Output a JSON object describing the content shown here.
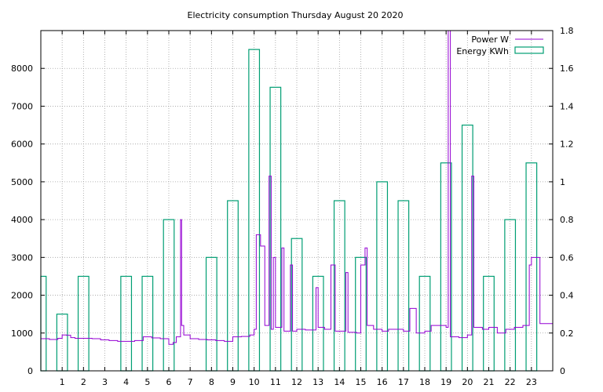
{
  "chart_data": {
    "type": "bar+line",
    "title": "Electricity consumption Thursday August 20 2020",
    "x_ticks": [
      "1",
      "2",
      "3",
      "4",
      "5",
      "6",
      "7",
      "8",
      "9",
      "10",
      "11",
      "12",
      "13",
      "14",
      "15",
      "16",
      "17",
      "18",
      "19",
      "20",
      "21",
      "22",
      "23"
    ],
    "xlim": [
      0,
      24
    ],
    "y_left": {
      "ticks": [
        "0",
        "1000",
        "2000",
        "3000",
        "4000",
        "5000",
        "6000",
        "7000",
        "8000"
      ],
      "range": [
        0,
        9000
      ]
    },
    "y_right": {
      "ticks": [
        "0",
        "0.2",
        "0.4",
        "0.6",
        "0.8",
        "1",
        "1.2",
        "1.4",
        "1.6",
        "1.8"
      ],
      "range": [
        0,
        1.8
      ]
    },
    "grid": true,
    "legend_position": "top-right",
    "colors": {
      "power": "#9400d3",
      "energy": "#009e73"
    },
    "series": [
      {
        "name": "Power W",
        "axis": "left",
        "points": [
          [
            0,
            850
          ],
          [
            0.4,
            830
          ],
          [
            0.8,
            860
          ],
          [
            1.0,
            950
          ],
          [
            1.2,
            940
          ],
          [
            1.4,
            880
          ],
          [
            1.6,
            860
          ],
          [
            1.8,
            860
          ],
          [
            2.0,
            860
          ],
          [
            2.4,
            850
          ],
          [
            2.8,
            820
          ],
          [
            3.2,
            800
          ],
          [
            3.6,
            780
          ],
          [
            4.0,
            780
          ],
          [
            4.4,
            800
          ],
          [
            4.8,
            900
          ],
          [
            5.2,
            870
          ],
          [
            5.6,
            850
          ],
          [
            6.0,
            700
          ],
          [
            6.2,
            750
          ],
          [
            6.35,
            900
          ],
          [
            6.55,
            4000
          ],
          [
            6.6,
            1200
          ],
          [
            6.7,
            950
          ],
          [
            7.0,
            850
          ],
          [
            7.4,
            830
          ],
          [
            7.8,
            820
          ],
          [
            8.2,
            800
          ],
          [
            8.6,
            780
          ],
          [
            9.0,
            900
          ],
          [
            9.4,
            910
          ],
          [
            9.8,
            950
          ],
          [
            10.0,
            1100
          ],
          [
            10.1,
            3600
          ],
          [
            10.3,
            3300
          ],
          [
            10.5,
            1200
          ],
          [
            10.7,
            5150
          ],
          [
            10.8,
            1100
          ],
          [
            10.9,
            3000
          ],
          [
            11.0,
            1150
          ],
          [
            11.3,
            3250
          ],
          [
            11.4,
            1050
          ],
          [
            11.7,
            2800
          ],
          [
            11.8,
            1050
          ],
          [
            12.0,
            1100
          ],
          [
            12.4,
            1080
          ],
          [
            12.9,
            2200
          ],
          [
            13.0,
            1150
          ],
          [
            13.3,
            1100
          ],
          [
            13.6,
            2800
          ],
          [
            13.8,
            1050
          ],
          [
            14.0,
            1050
          ],
          [
            14.3,
            2600
          ],
          [
            14.4,
            1020
          ],
          [
            14.8,
            1000
          ],
          [
            15.0,
            2800
          ],
          [
            15.2,
            3250
          ],
          [
            15.3,
            1200
          ],
          [
            15.6,
            1100
          ],
          [
            16.0,
            1050
          ],
          [
            16.3,
            1100
          ],
          [
            16.6,
            1100
          ],
          [
            17.0,
            1050
          ],
          [
            17.3,
            1650
          ],
          [
            17.6,
            1000
          ],
          [
            18.0,
            1050
          ],
          [
            18.3,
            1200
          ],
          [
            18.6,
            1200
          ],
          [
            19.0,
            1150
          ],
          [
            19.1,
            9500
          ],
          [
            19.2,
            900
          ],
          [
            19.6,
            880
          ],
          [
            20.0,
            950
          ],
          [
            20.2,
            5150
          ],
          [
            20.3,
            1150
          ],
          [
            20.7,
            1100
          ],
          [
            21.0,
            1150
          ],
          [
            21.4,
            1000
          ],
          [
            21.8,
            1100
          ],
          [
            22.2,
            1150
          ],
          [
            22.6,
            1200
          ],
          [
            22.9,
            2800
          ],
          [
            23.0,
            3000
          ],
          [
            23.2,
            3000
          ],
          [
            23.4,
            1250
          ],
          [
            23.7,
            1250
          ],
          [
            24.0,
            1270
          ]
        ]
      },
      {
        "name": "Energy KWh",
        "axis": "right",
        "bars": [
          [
            0,
            0.5
          ],
          [
            1,
            0.3
          ],
          [
            2,
            0.5
          ],
          [
            3,
            0
          ],
          [
            4,
            0.5
          ],
          [
            5,
            0.5
          ],
          [
            6,
            0.8
          ],
          [
            7,
            0
          ],
          [
            8,
            0.6
          ],
          [
            9,
            0.9
          ],
          [
            10,
            1.7
          ],
          [
            11,
            1.5
          ],
          [
            12,
            0.7
          ],
          [
            13,
            0.5
          ],
          [
            14,
            0.9
          ],
          [
            15,
            0.6
          ],
          [
            16,
            1.0
          ],
          [
            17,
            0.9
          ],
          [
            18,
            0.5
          ],
          [
            19,
            1.1
          ],
          [
            20,
            1.3
          ],
          [
            21,
            0.5
          ],
          [
            22,
            0.8
          ],
          [
            23,
            1.1
          ]
        ]
      }
    ]
  }
}
